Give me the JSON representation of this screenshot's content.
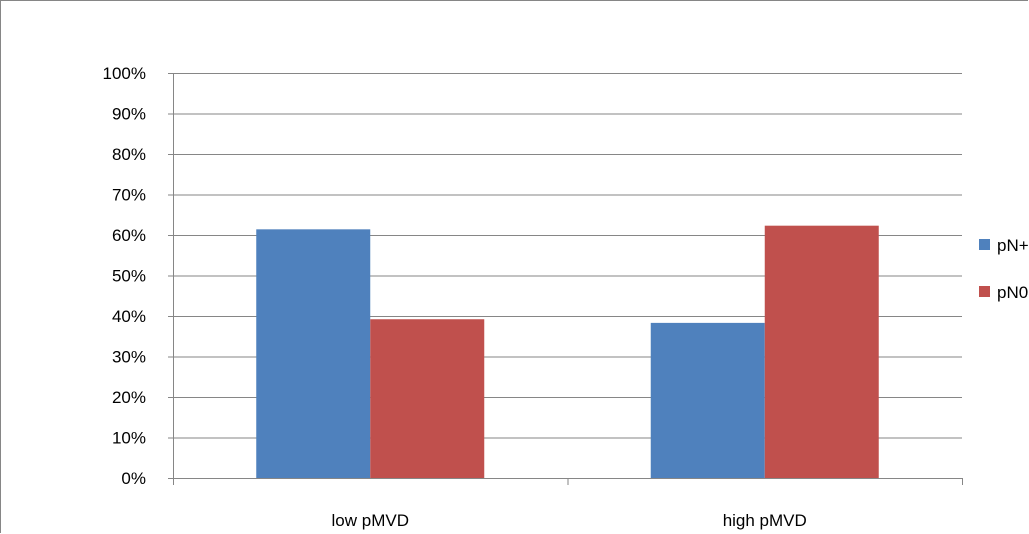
{
  "chart_data": {
    "type": "bar",
    "categories": [
      "low pMVD",
      "high pMVD"
    ],
    "series": [
      {
        "name": "pN+",
        "values": [
          61.4,
          38.3
        ],
        "color": "#4F81BD"
      },
      {
        "name": "pN0",
        "values": [
          39.2,
          62.3
        ],
        "color": "#C0504D"
      }
    ],
    "ylim": [
      0,
      100
    ],
    "yticks": [
      "0%",
      "10%",
      "20%",
      "30%",
      "40%",
      "50%",
      "60%",
      "70%",
      "80%",
      "90%",
      "100%"
    ],
    "y_tick_step": 10,
    "title": "",
    "xlabel": "",
    "ylabel": "",
    "grid": true,
    "legend_position": "right"
  }
}
